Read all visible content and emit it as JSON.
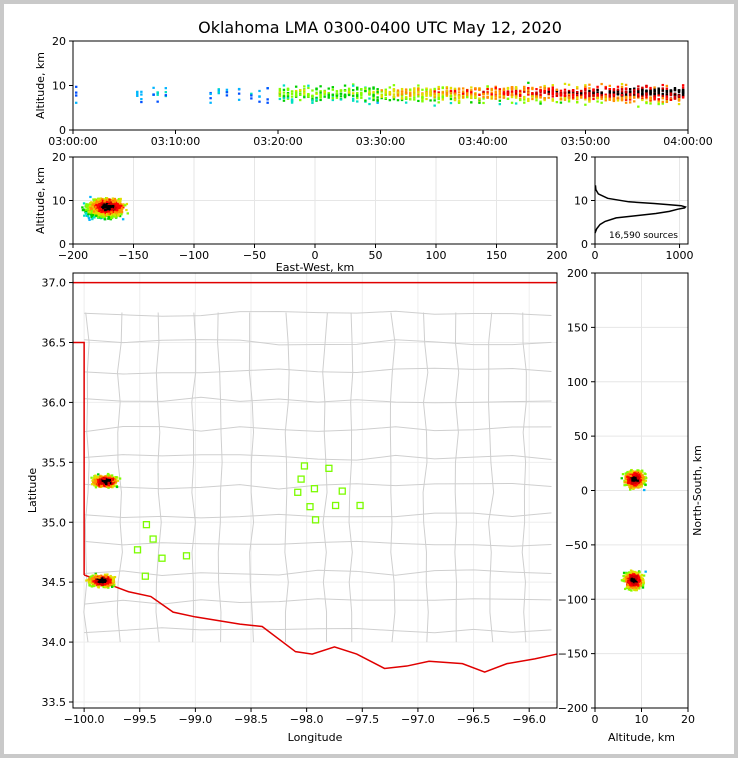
{
  "title": "Oklahoma LMA 0300-0400 UTC May 12, 2020",
  "chart_data": [
    {
      "id": "time-height",
      "type": "scatter",
      "xlabel": "",
      "ylabel": "Altitude, km",
      "x_ticks": [
        "03:00:00",
        "03:10:00",
        "03:20:00",
        "03:30:00",
        "03:40:00",
        "03:50:00",
        "04:00:00"
      ],
      "xlim": [
        "03:00:00",
        "04:00:00"
      ],
      "ylim": [
        0,
        20
      ],
      "y_ticks": [
        0,
        10,
        20
      ],
      "grid": false
    },
    {
      "id": "ew-altitude",
      "type": "heatmap",
      "xlabel": "East-West, km",
      "ylabel": "Altitude, km",
      "xlim": [
        -200,
        200
      ],
      "x_ticks": [
        -200,
        -150,
        -100,
        -50,
        0,
        50,
        100,
        150,
        200
      ],
      "ylim": [
        0,
        20
      ],
      "y_ticks": [
        0,
        10,
        20
      ],
      "grid": true
    },
    {
      "id": "altitude-histogram",
      "type": "line",
      "xlim": [
        0,
        1100
      ],
      "x_ticks": [
        0,
        1000
      ],
      "ylim": [
        0,
        20
      ],
      "y_ticks": [
        0,
        10,
        20
      ],
      "annotation": "16,590 sources",
      "profile": {
        "x": [
          0,
          20,
          60,
          120,
          250,
          480,
          720,
          880,
          980,
          1060,
          1070,
          1020,
          900,
          700,
          400,
          150,
          40,
          10,
          5
        ],
        "y": [
          2.5,
          3.5,
          4.5,
          5.2,
          6.0,
          6.5,
          7.0,
          7.5,
          8.0,
          8.3,
          8.5,
          8.8,
          9.0,
          9.3,
          9.7,
          10.5,
          11.5,
          12.5,
          13.5
        ]
      },
      "grid": true
    },
    {
      "id": "map",
      "type": "heatmap",
      "xlabel": "Longitude",
      "ylabel": "Latitude",
      "xlim": [
        -100.1,
        -95.75
      ],
      "ylim": [
        33.45,
        37.08
      ],
      "x_ticks": [
        "-100.0",
        "-99.5",
        "-99.0",
        "-98.5",
        "-98.0",
        "-97.5",
        "-97.0",
        "-96.5",
        "-96.0"
      ],
      "y_ticks": [
        "33.5",
        "34.0",
        "34.5",
        "35.0",
        "35.5",
        "36.0",
        "36.5",
        "37.0"
      ],
      "stations": {
        "lon": [
          -98.02,
          -98.05,
          -97.8,
          -98.08,
          -97.93,
          -97.97,
          -97.68,
          -97.92,
          -97.74,
          -97.52,
          -99.44,
          -99.38,
          -99.52,
          -99.3,
          -99.08,
          -99.45
        ],
        "lat": [
          35.47,
          35.36,
          35.45,
          35.25,
          35.28,
          35.13,
          35.26,
          35.02,
          35.14,
          35.14,
          34.98,
          34.86,
          34.77,
          34.7,
          34.72,
          34.55
        ]
      },
      "grid": true
    },
    {
      "id": "altitude-ns",
      "type": "heatmap",
      "xlabel": "Altitude, km",
      "ylabel": "North-South, km",
      "xlim": [
        0,
        20
      ],
      "x_ticks": [
        0,
        10,
        20
      ],
      "ylim": [
        -200,
        200
      ],
      "y_ticks": [
        -200,
        -150,
        -100,
        -50,
        0,
        50,
        100,
        150,
        200
      ],
      "grid": true
    }
  ]
}
